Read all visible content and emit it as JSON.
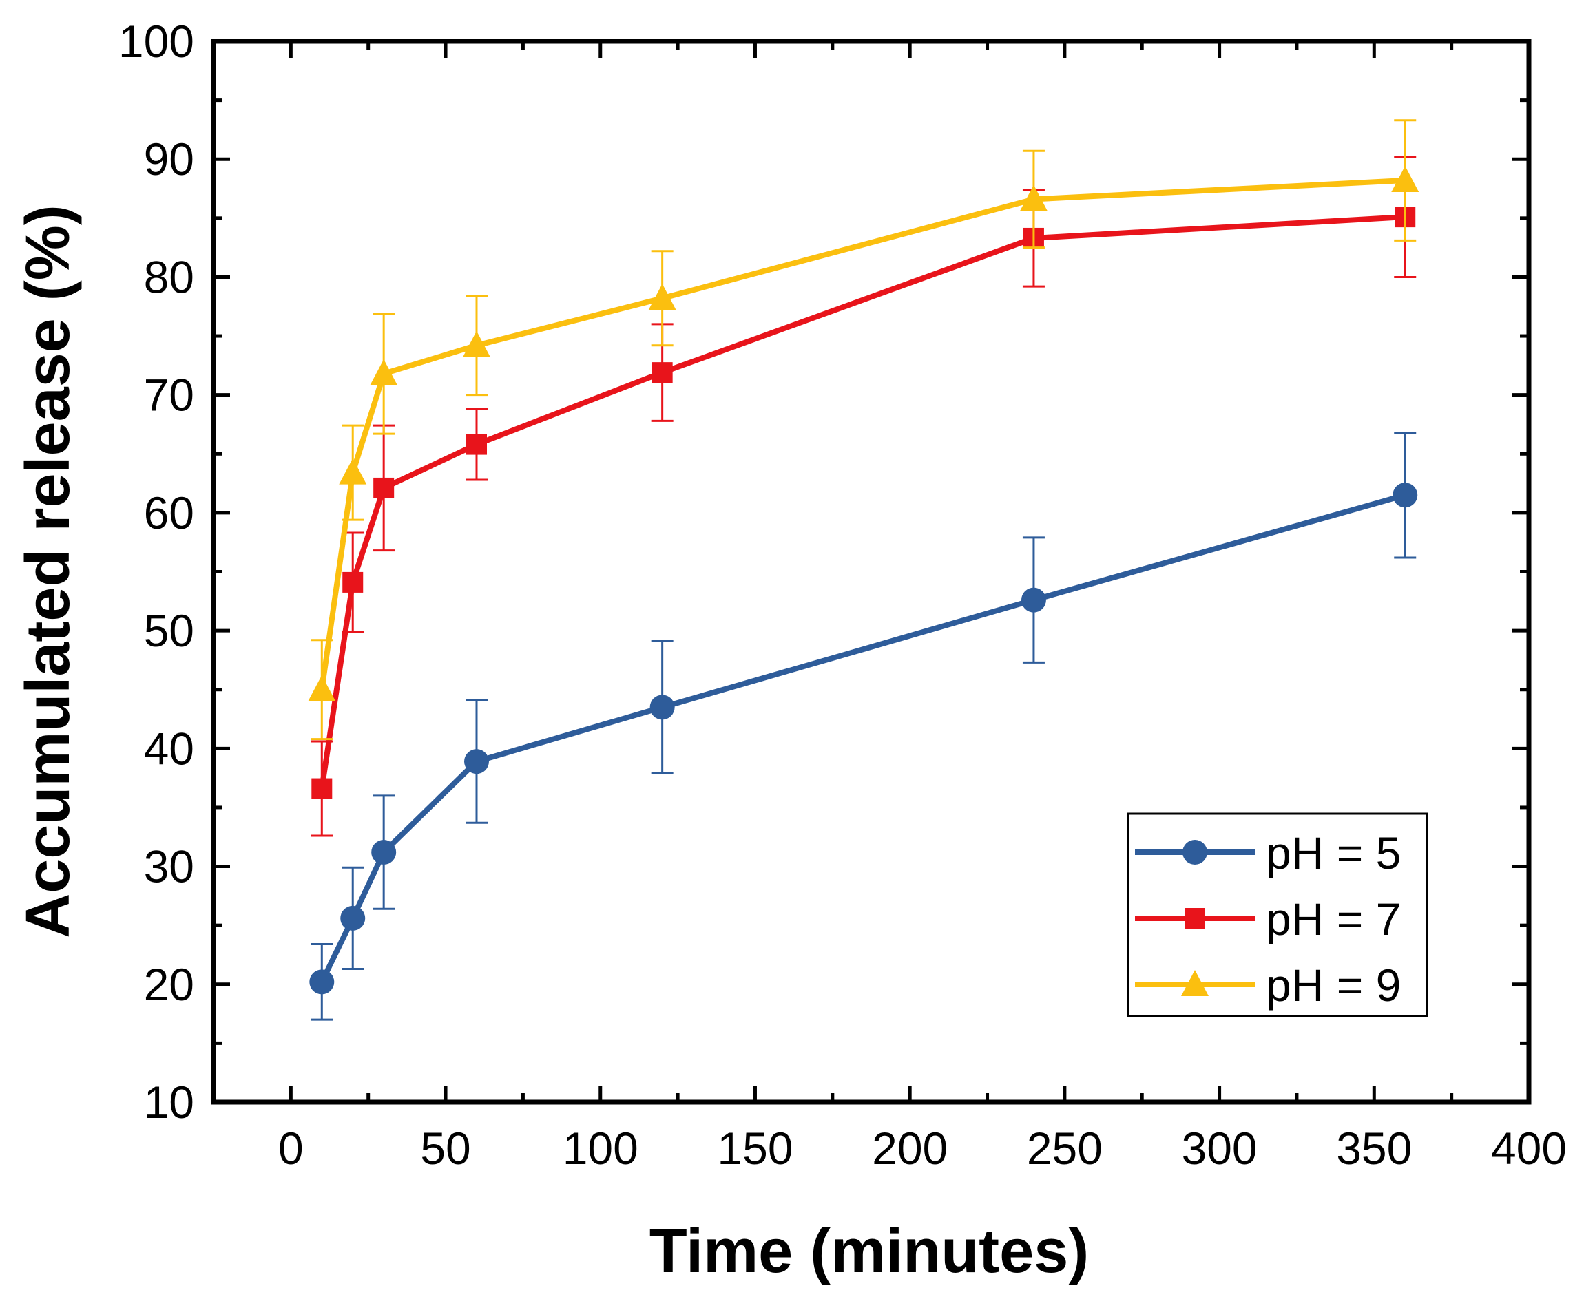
{
  "chart_data": {
    "type": "line",
    "title": "",
    "xlabel": "Time (minutes)",
    "ylabel": "Accumulated release (%)",
    "xlim": [
      -25,
      400
    ],
    "ylim": [
      10,
      100
    ],
    "xticks": [
      "0",
      "50",
      "100",
      "150",
      "200",
      "250",
      "300",
      "350",
      "400"
    ],
    "yticks": [
      "10",
      "20",
      "30",
      "40",
      "50",
      "60",
      "70",
      "80",
      "90",
      "100"
    ],
    "grid": false,
    "legend_position": "bottom-right",
    "x": [
      10,
      20,
      30,
      60,
      120,
      240,
      360
    ],
    "series": [
      {
        "name": "pH = 5",
        "color": "#2e5c9a",
        "marker": "circle",
        "values": [
          20.2,
          25.6,
          31.2,
          38.9,
          43.5,
          52.6,
          61.5
        ],
        "error": [
          3.2,
          4.3,
          4.8,
          5.2,
          5.6,
          5.3,
          5.3
        ]
      },
      {
        "name": "pH = 7",
        "color": "#e8141b",
        "marker": "square",
        "values": [
          36.6,
          54.1,
          62.1,
          65.8,
          71.9,
          83.3,
          85.1
        ],
        "error": [
          4.0,
          4.2,
          5.3,
          3.0,
          4.1,
          4.1,
          5.1
        ]
      },
      {
        "name": "pH = 9",
        "color": "#fbbf0f",
        "marker": "triangle",
        "values": [
          45.0,
          63.4,
          71.8,
          74.2,
          78.2,
          86.6,
          88.2
        ],
        "error": [
          4.2,
          4.0,
          5.1,
          4.2,
          4.0,
          4.1,
          5.1
        ]
      }
    ]
  }
}
